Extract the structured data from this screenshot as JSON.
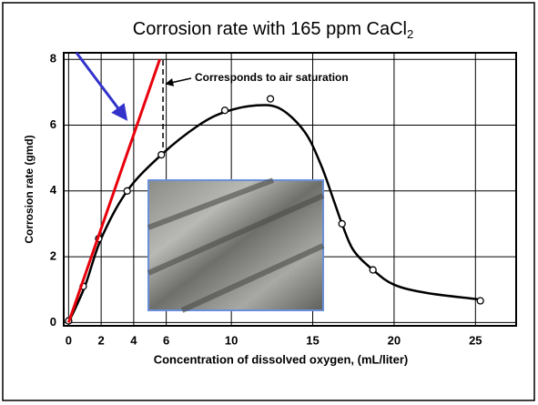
{
  "chart_data": {
    "type": "line",
    "title": "Corrosion rate with 165 ppm CaCl",
    "title_subscript": "2",
    "x_label": "Concentration of dissolved oxygen, (mL/liter)",
    "y_label": "Corrosion rate (gmd)",
    "annotation": "Corresponds to air saturation",
    "annotation_x": 5.8,
    "xlim": [
      -0.3,
      27.5
    ],
    "ylim": [
      -0.1,
      8.2
    ],
    "xticks": [
      0,
      2,
      4,
      6,
      10,
      15,
      20,
      25
    ],
    "yticks": [
      0,
      2,
      4,
      6,
      8
    ],
    "grid": true,
    "series": [
      {
        "color": "#000000",
        "markers": false,
        "x": [
          0,
          1,
          2,
          3.6,
          5.7,
          8,
          9.6,
          11.5,
          13,
          14.5,
          15.5,
          16.3,
          16.8,
          17.5,
          18.7,
          20,
          22,
          25.3
        ],
        "values": [
          0,
          1.1,
          2.55,
          4,
          5.1,
          6,
          6.4,
          6.6,
          6.5,
          5.8,
          4.8,
          3.7,
          3,
          2.2,
          1.6,
          1.15,
          0.9,
          0.7
        ]
      },
      {
        "color": "#000000",
        "markers": true,
        "line": false,
        "x": [
          0,
          0.9,
          1.85,
          3.6,
          5.7,
          9.6,
          12.4,
          16.8,
          18.7,
          25.3
        ],
        "values": [
          0.05,
          1.1,
          2.55,
          4,
          5.1,
          6.45,
          6.8,
          3,
          1.6,
          0.66
        ]
      },
      {
        "color": "#e8000b",
        "markers": false,
        "x": [
          0,
          5.6
        ],
        "values": [
          0,
          8
        ]
      }
    ]
  }
}
